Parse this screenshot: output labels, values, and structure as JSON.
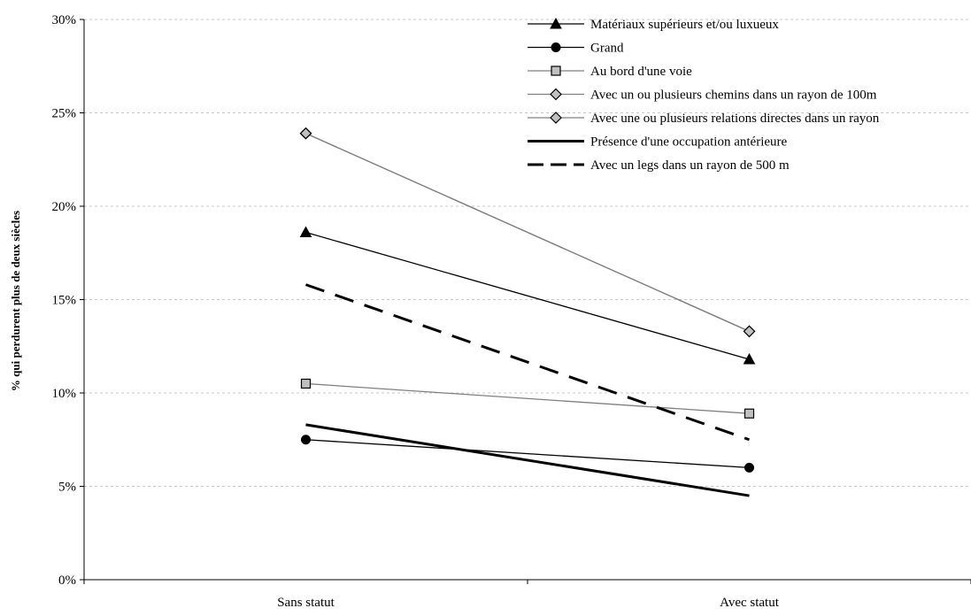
{
  "chart_data": {
    "type": "line",
    "title": "",
    "xlabel": "",
    "ylabel": "% qui perdurent plus de deux siècles",
    "categories": [
      "Sans statut",
      "Avec statut"
    ],
    "ylim": [
      0,
      30
    ],
    "yticks": [
      0,
      5,
      10,
      15,
      20,
      25,
      30
    ],
    "ytick_labels": [
      "0%",
      "5%",
      "10%",
      "15%",
      "20%",
      "25%",
      "30%"
    ],
    "grid": "horizontal dashed",
    "legend_position": "top-right",
    "series": [
      {
        "name": "Matériaux supérieurs et/ou luxueux",
        "values": [
          18.6,
          11.8
        ],
        "color": "#000000",
        "style": "solid-thin",
        "marker": "triangle"
      },
      {
        "name": "Grand",
        "values": [
          7.5,
          6.0
        ],
        "color": "#000000",
        "style": "solid-thin",
        "marker": "circle"
      },
      {
        "name": "Au bord d'une voie",
        "values": [
          10.5,
          8.9
        ],
        "color": "#808080",
        "style": "solid-thin",
        "marker": "square"
      },
      {
        "name": "Avec un ou plusieurs chemins dans un rayon de 100m",
        "values": [
          23.9,
          13.3
        ],
        "color": "#808080",
        "style": "solid-thin",
        "marker": "diamond"
      },
      {
        "name": "Avec une ou plusieurs relations directes dans un rayon",
        "values": [
          23.9,
          13.3
        ],
        "color": "#808080",
        "style": "solid-thin",
        "marker": "diamond"
      },
      {
        "name": "Présence d'une occupation antérieure",
        "values": [
          8.3,
          4.5
        ],
        "color": "#000000",
        "style": "solid-thick",
        "marker": "none"
      },
      {
        "name": "Avec un legs dans un rayon de 500 m",
        "values": [
          15.8,
          7.5
        ],
        "color": "#000000",
        "style": "dashed-thick",
        "marker": "none"
      }
    ]
  }
}
